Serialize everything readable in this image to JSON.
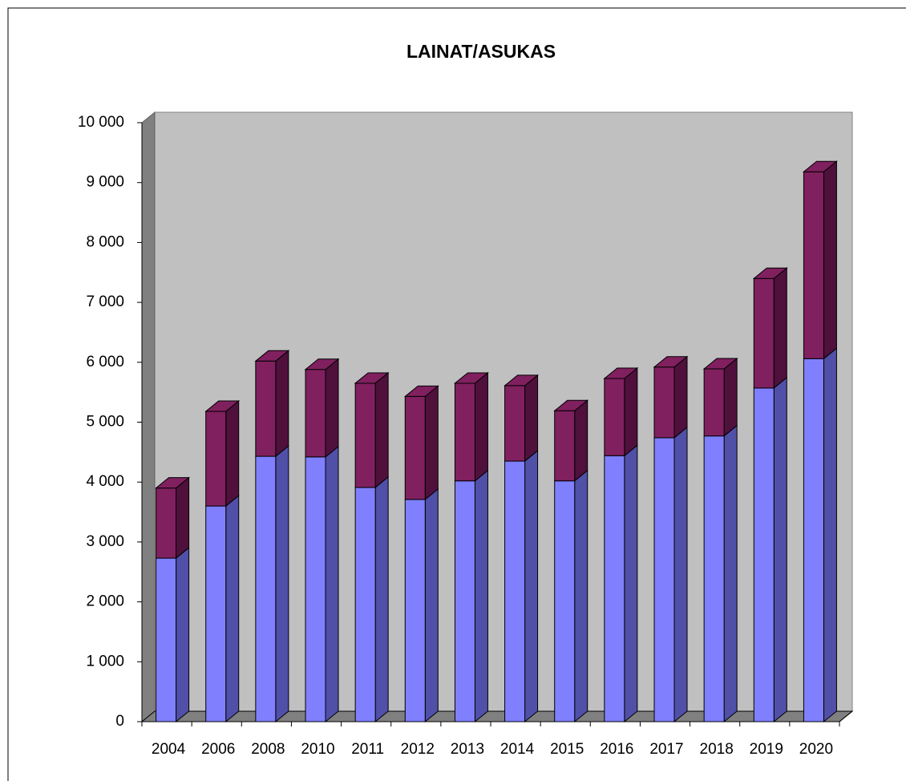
{
  "chart_data": {
    "type": "bar3d_stacked",
    "title": "LAINAT/ASUKAS",
    "categories": [
      "2004",
      "2006",
      "2008",
      "2010",
      "2011",
      "2012",
      "2013",
      "2014",
      "2015",
      "2016",
      "2017",
      "2018",
      "2019",
      "2020"
    ],
    "series": [
      {
        "color": "#8080ff",
        "side_color": "#5050a8",
        "values": [
          2730,
          3600,
          4430,
          4420,
          3910,
          3710,
          4020,
          4350,
          4020,
          4440,
          4740,
          4770,
          5570,
          6060
        ]
      },
      {
        "color": "#80205f",
        "side_color": "#50103c",
        "values": [
          1170,
          1580,
          1590,
          1460,
          1740,
          1720,
          1630,
          1260,
          1170,
          1290,
          1180,
          1120,
          1830,
          3120
        ]
      }
    ],
    "ylim": [
      0,
      10000
    ],
    "yticks": [
      0,
      {
        "value": 1000,
        "label": "1 000"
      },
      {
        "value": 2000,
        "label": "2 000"
      },
      {
        "value": 3000,
        "label": "3 000"
      },
      {
        "value": 4000,
        "label": "4 000"
      },
      {
        "value": 5000,
        "label": "5 000"
      },
      {
        "value": 6000,
        "label": "6 000"
      },
      {
        "value": 7000,
        "label": "7 000"
      },
      {
        "value": 8000,
        "label": "8 000"
      },
      {
        "value": 9000,
        "label": "9 000"
      },
      {
        "value": 10000,
        "label": "10 000"
      }
    ],
    "stacked": true
  }
}
